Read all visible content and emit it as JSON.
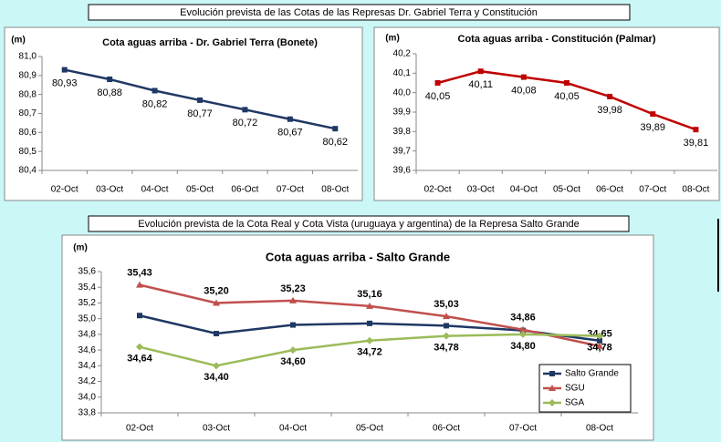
{
  "banners": [
    "Evolución prevista de las Cotas de las Represas Dr. Gabriel Terra y Constitución",
    "Evolución prevista de la Cota Real y Cota Vista (uruguaya y argentina) de la Represa Salto Grande"
  ],
  "chart_data": [
    {
      "type": "line",
      "title": "Cota aguas arriba - Dr. Gabriel Terra (Bonete)",
      "ylabel": "(m)",
      "categories": [
        "02-Oct",
        "03-Oct",
        "04-Oct",
        "05-Oct",
        "06-Oct",
        "07-Oct",
        "08-Oct"
      ],
      "series": [
        {
          "color": "#1f3864",
          "marker": "square",
          "values": [
            80.93,
            80.88,
            80.82,
            80.77,
            80.72,
            80.67,
            80.62
          ],
          "value_labels": [
            "80,93",
            "80,88",
            "80,82",
            "80,77",
            "80,72",
            "80,67",
            "80,62"
          ]
        }
      ],
      "ylim": [
        80.4,
        81.0
      ],
      "yticks": [
        {
          "value": 80.4,
          "label": "80,4"
        },
        {
          "value": 80.5,
          "label": "80,5"
        },
        {
          "value": 80.6,
          "label": "80,6"
        },
        {
          "value": 80.7,
          "label": "80,7"
        },
        {
          "value": 80.8,
          "label": "80,8"
        },
        {
          "value": 80.9,
          "label": "80,9"
        },
        {
          "value": 81.0,
          "label": "81,0"
        }
      ],
      "grid": false
    },
    {
      "type": "line",
      "title": "Cota aguas arriba - Constitución (Palmar)",
      "ylabel": "(m)",
      "categories": [
        "02-Oct",
        "03-Oct",
        "04-Oct",
        "05-Oct",
        "06-Oct",
        "07-Oct",
        "08-Oct"
      ],
      "series": [
        {
          "color": "#c00000",
          "marker": "square",
          "values": [
            40.05,
            40.11,
            40.08,
            40.05,
            39.98,
            39.89,
            39.81
          ],
          "value_labels": [
            "40,05",
            "40,11",
            "40,08",
            "40,05",
            "39,98",
            "39,89",
            "39,81"
          ]
        }
      ],
      "ylim": [
        39.6,
        40.2
      ],
      "yticks": [
        {
          "value": 39.6,
          "label": "39,6"
        },
        {
          "value": 39.7,
          "label": "39,7"
        },
        {
          "value": 39.8,
          "label": "39,8"
        },
        {
          "value": 39.9,
          "label": "39,9"
        },
        {
          "value": 40.0,
          "label": "40,0"
        },
        {
          "value": 40.1,
          "label": "40,1"
        },
        {
          "value": 40.2,
          "label": "40,2"
        }
      ],
      "grid": false
    },
    {
      "type": "line",
      "title": "Cota aguas arriba - Salto Grande",
      "ylabel": "(m)",
      "categories": [
        "02-Oct",
        "03-Oct",
        "04-Oct",
        "05-Oct",
        "06-Oct",
        "07-Oct",
        "08-Oct"
      ],
      "series": [
        {
          "name": "Salto Grande",
          "color": "#1f3864",
          "marker": "square",
          "values": [
            35.04,
            34.81,
            34.92,
            34.94,
            34.91,
            34.85,
            34.72
          ]
        },
        {
          "name": "SGU",
          "color": "#c0504d",
          "marker": "triangle",
          "values": [
            35.43,
            35.2,
            35.23,
            35.16,
            35.03,
            34.86,
            34.65
          ],
          "value_labels": [
            "35,43",
            "35,20",
            "35,23",
            "35,16",
            "35,03",
            "34,86",
            "34,65"
          ]
        },
        {
          "name": "SGA",
          "color": "#9bbb59",
          "marker": "diamond",
          "values": [
            34.64,
            34.4,
            34.6,
            34.72,
            34.78,
            34.8,
            34.78
          ],
          "value_labels": [
            "34,64",
            "34,40",
            "34,60",
            "34,72",
            "34,78",
            "34,80",
            "34,78"
          ]
        }
      ],
      "ylim": [
        33.8,
        35.6
      ],
      "yticks": [
        {
          "value": 33.8,
          "label": "33,8"
        },
        {
          "value": 34.0,
          "label": "34,0"
        },
        {
          "value": 34.2,
          "label": "34,2"
        },
        {
          "value": 34.4,
          "label": "34,4"
        },
        {
          "value": 34.6,
          "label": "34,6"
        },
        {
          "value": 34.8,
          "label": "34,8"
        },
        {
          "value": 35.0,
          "label": "35,0"
        },
        {
          "value": 35.2,
          "label": "35,2"
        },
        {
          "value": 35.4,
          "label": "35,4"
        },
        {
          "value": 35.6,
          "label": "35,6"
        }
      ],
      "grid": false,
      "legend": "lower-right"
    }
  ]
}
